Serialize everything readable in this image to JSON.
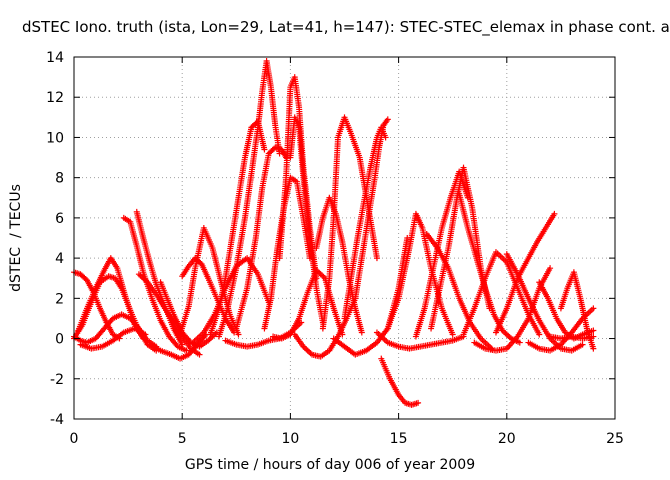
{
  "chart_data": {
    "type": "scatter",
    "title": "dSTEC Iono. truth (ista, Lon=29, Lat=41, h=147): STEC-STEC_elemax in phase cont. a",
    "xlabel": "GPS time / hours of day 006 of year 2009",
    "ylabel": "dSTEC  / TECUs",
    "xlim": [
      0,
      25
    ],
    "ylim": [
      -4,
      14
    ],
    "xticks": [
      "0",
      "5",
      "10",
      "15",
      "20",
      "25"
    ],
    "yticks": [
      "-4",
      "-2",
      "0",
      "2",
      "4",
      "6",
      "8",
      "10",
      "12",
      "14"
    ],
    "grid": true,
    "marker": "+",
    "color": "#ff0000",
    "series": [
      {
        "x": [
          0.0,
          0.3,
          0.6,
          0.9,
          1.2,
          1.5,
          1.8,
          2.1
        ],
        "y": [
          3.3,
          3.2,
          2.9,
          2.3,
          1.5,
          0.8,
          0.2,
          0.0
        ]
      },
      {
        "x": [
          0.0,
          0.3,
          0.6,
          1.0,
          1.4,
          1.8,
          2.2,
          2.6,
          3.0,
          3.4,
          3.8
        ],
        "y": [
          0.1,
          -0.1,
          -0.2,
          0.0,
          0.5,
          1.0,
          1.2,
          1.0,
          0.5,
          -0.1,
          -0.4
        ]
      },
      {
        "x": [
          0.0,
          0.4,
          0.8,
          1.2,
          1.6,
          1.9,
          2.2,
          2.6,
          3.0,
          3.4,
          3.8
        ],
        "y": [
          0.0,
          0.7,
          1.8,
          2.8,
          3.1,
          3.0,
          2.5,
          1.4,
          0.4,
          -0.3,
          -0.6
        ]
      },
      {
        "x": [
          0.2,
          0.6,
          1.0,
          1.4,
          1.7,
          2.0,
          2.4,
          2.8,
          3.2
        ],
        "y": [
          0.4,
          1.5,
          2.5,
          3.4,
          4.0,
          3.5,
          2.0,
          0.7,
          0.0
        ]
      },
      {
        "x": [
          0.3,
          0.8,
          1.3,
          1.8,
          2.3,
          2.8,
          3.3
        ],
        "y": [
          -0.3,
          -0.5,
          -0.4,
          -0.1,
          0.3,
          0.5,
          0.2
        ]
      },
      {
        "x": [
          2.3,
          2.6,
          2.9,
          3.2,
          3.6,
          4.0,
          4.4,
          4.8,
          5.2
        ],
        "y": [
          6.0,
          5.8,
          4.6,
          3.3,
          2.0,
          0.9,
          0.1,
          -0.4,
          -0.6
        ]
      },
      {
        "x": [
          2.9,
          3.2,
          3.5,
          3.8,
          4.2,
          4.6,
          5.0
        ],
        "y": [
          6.3,
          5.0,
          3.8,
          2.7,
          1.6,
          0.5,
          -0.3
        ]
      },
      {
        "x": [
          3.0,
          3.4,
          3.8,
          4.2,
          4.6,
          5.0,
          5.4,
          5.8
        ],
        "y": [
          3.2,
          2.8,
          2.2,
          1.5,
          0.8,
          0.1,
          -0.5,
          -0.8
        ]
      },
      {
        "x": [
          3.5,
          4.0,
          4.5,
          4.9,
          5.3,
          5.7,
          6.1
        ],
        "y": [
          -0.3,
          -0.6,
          -0.8,
          -1.0,
          -0.8,
          -0.3,
          0.2
        ]
      },
      {
        "x": [
          4.0,
          4.3,
          4.6,
          5.0,
          5.4,
          5.8,
          6.2,
          6.6
        ],
        "y": [
          2.8,
          2.0,
          1.2,
          0.3,
          -0.2,
          -0.4,
          -0.1,
          0.3
        ]
      },
      {
        "x": [
          5.0,
          5.3,
          5.6,
          5.9,
          6.2,
          6.6,
          7.0,
          7.4
        ],
        "y": [
          3.1,
          3.6,
          4.0,
          3.7,
          3.0,
          2.0,
          1.0,
          0.3
        ]
      },
      {
        "x": [
          4.9,
          5.3,
          5.6,
          6.0,
          6.4,
          6.8,
          7.2,
          7.6
        ],
        "y": [
          0.2,
          1.6,
          3.5,
          5.5,
          4.5,
          2.8,
          1.2,
          0.2
        ]
      },
      {
        "x": [
          5.5,
          6.0,
          6.5,
          7.0,
          7.5,
          8.0,
          8.5,
          9.0
        ],
        "y": [
          -0.2,
          0.3,
          1.2,
          2.5,
          3.6,
          4.0,
          3.2,
          1.8
        ]
      },
      {
        "x": [
          6.3,
          6.7,
          7.0,
          7.3,
          7.6,
          7.9,
          8.2,
          8.5,
          8.8
        ],
        "y": [
          0.2,
          1.5,
          3.0,
          5.0,
          7.0,
          9.0,
          10.5,
          10.8,
          9.4
        ]
      },
      {
        "x": [
          6.7,
          7.1,
          7.5,
          7.9,
          8.2,
          8.5,
          8.7,
          8.9,
          9.1,
          9.3,
          9.5
        ],
        "y": [
          0.1,
          1.5,
          3.5,
          6.0,
          8.2,
          10.5,
          12.3,
          13.8,
          12.5,
          10.6,
          9.2
        ]
      },
      {
        "x": [
          7.5,
          8.0,
          8.4,
          8.7,
          9.0,
          9.3,
          9.6,
          9.8
        ],
        "y": [
          0.5,
          2.5,
          5.0,
          7.5,
          9.2,
          9.5,
          9.4,
          9.0
        ]
      },
      {
        "x": [
          8.8,
          9.1,
          9.4,
          9.7,
          10.0,
          10.3,
          10.6,
          10.9
        ],
        "y": [
          0.5,
          2.0,
          4.5,
          6.5,
          8.0,
          7.8,
          6.0,
          4.0
        ]
      },
      {
        "x": [
          9.5,
          9.8,
          10.0,
          10.2,
          10.4,
          10.6,
          10.9,
          11.2
        ],
        "y": [
          4.0,
          8.0,
          12.5,
          13.0,
          11.5,
          8.5,
          5.5,
          3.0
        ]
      },
      {
        "x": [
          10.0,
          10.2,
          10.4,
          10.6,
          10.9,
          11.2,
          11.5
        ],
        "y": [
          9.0,
          11.0,
          10.5,
          8.0,
          5.0,
          2.5,
          0.8
        ]
      },
      {
        "x": [
          7.0,
          7.5,
          8.0,
          8.5,
          9.0,
          9.5,
          10.0,
          10.5
        ],
        "y": [
          -0.1,
          -0.3,
          -0.4,
          -0.3,
          -0.1,
          0.0,
          0.3,
          0.8
        ]
      },
      {
        "x": [
          9.2,
          9.6,
          10.0,
          10.4,
          10.8,
          11.2,
          11.6,
          12.0,
          12.4
        ],
        "y": [
          0.1,
          0.0,
          0.2,
          1.0,
          2.3,
          3.4,
          3.0,
          1.5,
          0.2
        ]
      },
      {
        "x": [
          10.2,
          10.6,
          11.0,
          11.4,
          11.8,
          12.2,
          12.6,
          13.0
        ],
        "y": [
          0.2,
          -0.4,
          -0.8,
          -0.9,
          -0.6,
          0.1,
          1.0,
          2.0
        ]
      },
      {
        "x": [
          11.2,
          11.5,
          11.8,
          12.1,
          12.4,
          12.7,
          13.0,
          13.3
        ],
        "y": [
          4.5,
          6.0,
          7.0,
          6.2,
          4.8,
          3.0,
          1.5,
          0.3
        ]
      },
      {
        "x": [
          11.5,
          11.8,
          12.0,
          12.2,
          12.5,
          12.8,
          13.2,
          13.6,
          14.0
        ],
        "y": [
          0.5,
          3.0,
          6.0,
          10.0,
          11.0,
          10.2,
          9.0,
          6.5,
          4.0
        ]
      },
      {
        "x": [
          12.5,
          12.8,
          13.1,
          13.4,
          13.7,
          14.0,
          14.2,
          14.4
        ],
        "y": [
          1.0,
          3.0,
          5.0,
          6.8,
          8.5,
          10.0,
          10.5,
          10.0
        ]
      },
      {
        "x": [
          13.0,
          13.3,
          13.6,
          13.9,
          14.1,
          14.3,
          14.5
        ],
        "y": [
          2.0,
          4.0,
          6.0,
          8.0,
          9.5,
          10.6,
          10.9
        ]
      },
      {
        "x": [
          12.0,
          12.5,
          13.0,
          13.5,
          14.0,
          14.5,
          15.0,
          15.4
        ],
        "y": [
          0.0,
          -0.4,
          -0.8,
          -0.6,
          -0.2,
          0.5,
          2.5,
          5.0
        ]
      },
      {
        "x": [
          14.2,
          14.6,
          15.0,
          15.3,
          15.6,
          15.9
        ],
        "y": [
          -1.0,
          -2.0,
          -2.8,
          -3.2,
          -3.3,
          -3.2
        ]
      },
      {
        "x": [
          14.0,
          14.5,
          15.0,
          15.5,
          16.0,
          16.5,
          17.0,
          17.5,
          18.0
        ],
        "y": [
          0.3,
          -0.2,
          -0.4,
          -0.5,
          -0.4,
          -0.3,
          -0.2,
          -0.1,
          0.1
        ]
      },
      {
        "x": [
          14.5,
          15.0,
          15.5,
          15.8,
          16.1,
          16.5,
          17.0,
          17.5
        ],
        "y": [
          0.5,
          2.0,
          4.5,
          6.2,
          5.5,
          3.5,
          1.5,
          0.2
        ]
      },
      {
        "x": [
          15.8,
          16.2,
          16.6,
          17.0,
          17.4,
          17.8,
          18.2
        ],
        "y": [
          0.1,
          1.5,
          3.5,
          5.5,
          7.0,
          8.3,
          7.0
        ]
      },
      {
        "x": [
          16.3,
          16.8,
          17.3,
          17.8,
          18.3,
          18.8,
          19.3
        ],
        "y": [
          5.2,
          4.5,
          3.5,
          2.0,
          0.8,
          0.0,
          -0.5
        ]
      },
      {
        "x": [
          16.5,
          16.9,
          17.3,
          17.7,
          18.0,
          18.4,
          18.8,
          19.2
        ],
        "y": [
          0.5,
          2.5,
          4.5,
          7.0,
          8.5,
          6.5,
          3.5,
          1.5
        ]
      },
      {
        "x": [
          17.8,
          18.2,
          18.6,
          19.0,
          19.4,
          19.8,
          20.2,
          20.6
        ],
        "y": [
          7.2,
          5.5,
          4.0,
          2.5,
          1.2,
          0.4,
          0.0,
          -0.2
        ]
      },
      {
        "x": [
          18.0,
          18.5,
          19.0,
          19.5,
          20.0,
          20.5,
          21.0,
          21.5
        ],
        "y": [
          0.2,
          1.5,
          3.0,
          4.3,
          3.8,
          2.5,
          1.2,
          0.2
        ]
      },
      {
        "x": [
          18.5,
          19.0,
          19.5,
          20.0,
          20.5,
          21.0,
          21.5,
          22.0
        ],
        "y": [
          -0.2,
          -0.5,
          -0.6,
          -0.5,
          0.1,
          1.0,
          2.5,
          3.5
        ]
      },
      {
        "x": [
          19.5,
          20.0,
          20.5,
          21.0,
          21.4,
          21.8,
          22.2
        ],
        "y": [
          0.3,
          1.5,
          3.0,
          4.0,
          4.8,
          5.5,
          6.2
        ]
      },
      {
        "x": [
          20.0,
          20.5,
          21.0,
          21.5,
          22.0,
          22.5,
          23.0,
          23.5
        ],
        "y": [
          4.2,
          3.2,
          2.0,
          0.9,
          0.0,
          -0.5,
          -0.6,
          -0.3
        ]
      },
      {
        "x": [
          21.0,
          21.5,
          22.0,
          22.5,
          23.0,
          23.5,
          24.0
        ],
        "y": [
          -0.2,
          -0.5,
          -0.6,
          -0.3,
          0.3,
          1.0,
          1.5
        ]
      },
      {
        "x": [
          21.5,
          21.9,
          22.3,
          22.7,
          23.1,
          23.5,
          24.0
        ],
        "y": [
          2.8,
          2.0,
          1.0,
          0.3,
          0.0,
          0.2,
          0.4
        ]
      },
      {
        "x": [
          22.5,
          22.8,
          23.1,
          23.4,
          23.7,
          24.0
        ],
        "y": [
          1.5,
          2.5,
          3.3,
          2.0,
          0.5,
          -0.5
        ]
      },
      {
        "x": [
          22.0,
          22.5,
          23.0,
          23.5,
          24.0
        ],
        "y": [
          0.1,
          0.0,
          0.1,
          0.0,
          0.1
        ]
      }
    ]
  }
}
